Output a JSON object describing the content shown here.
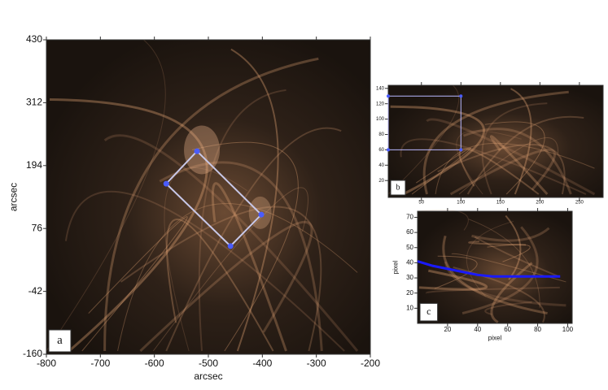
{
  "chart_data": [
    {
      "type": "image",
      "panel_label": "a",
      "xlabel": "arcsec",
      "ylabel": "arcsec",
      "xlim": [
        -800,
        -200
      ],
      "ylim": [
        -160,
        430
      ],
      "xticks": [
        -800,
        -700,
        -600,
        -500,
        -400,
        -300,
        -200
      ],
      "yticks": [
        -160,
        -42,
        76,
        194,
        312,
        430
      ],
      "overlay": {
        "x": [
          -521,
          -578,
          -459,
          -402
        ],
        "y": [
          221,
          160,
          43,
          102
        ],
        "color": "#c8c8e8",
        "marker_color": "#4a5cff"
      }
    },
    {
      "type": "image",
      "panel_label": "b",
      "xlim": [
        8,
        280
      ],
      "ylim": [
        -2,
        144
      ],
      "xticks": [
        50,
        100,
        150,
        200,
        250
      ],
      "yticks": [
        20,
        40,
        60,
        80,
        100,
        120,
        140
      ],
      "overlay": {
        "x": [
          8,
          8,
          100,
          100
        ],
        "y": [
          130,
          60,
          60,
          130
        ],
        "color": "#b8b8ff",
        "marker_color": "#4a5cff"
      }
    },
    {
      "type": "line",
      "panel_label": "c",
      "xlabel": "pixel",
      "ylabel": "pixel",
      "xlim": [
        0,
        103
      ],
      "ylim": [
        0,
        74
      ],
      "xticks": [
        20,
        40,
        60,
        80,
        100
      ],
      "yticks": [
        10,
        20,
        30,
        40,
        50,
        60,
        70
      ],
      "x": [
        0,
        10,
        20,
        30,
        40,
        50,
        60,
        70,
        80,
        90,
        95
      ],
      "series": [
        {
          "color": "#1a1aff",
          "values": [
            41,
            38,
            36,
            34,
            32,
            31,
            31,
            31,
            31,
            31,
            31
          ]
        }
      ]
    }
  ]
}
